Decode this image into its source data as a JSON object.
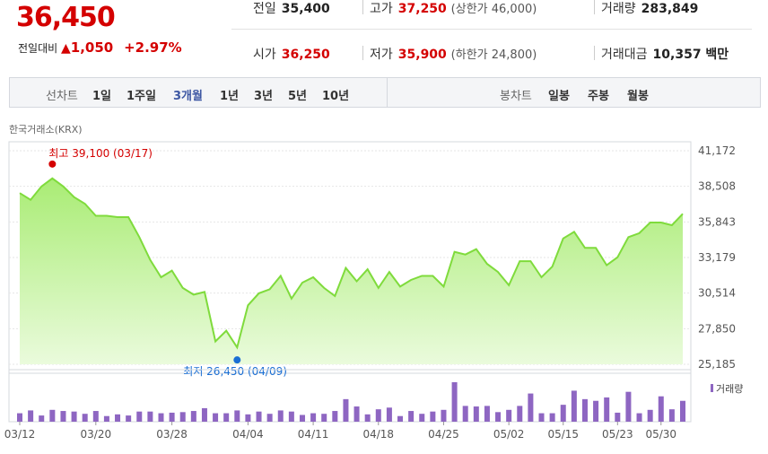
{
  "quote": {
    "price": "36,450",
    "change_label": "전일대비",
    "change_arrow": "▲",
    "change": "1,050",
    "percent": "+2.97%"
  },
  "stats": {
    "prev_label": "전일",
    "prev": "35,400",
    "open_label": "시가",
    "open": "36,250",
    "high_label": "고가",
    "high": "37,250",
    "upper_limit": "(상한가 46,000)",
    "low_label": "저가",
    "low": "35,900",
    "lower_limit": "(하한가 24,800)",
    "volume_label": "거래량",
    "volume": "283,849",
    "amount_label": "거래대금",
    "amount": "10,357 백만"
  },
  "toolbar": {
    "period_label": "선차트",
    "periods": [
      "1일",
      "1주일",
      "3개월",
      "1년",
      "3년",
      "5년",
      "10년"
    ],
    "active_period": "3개월",
    "candle_label": "봉차트",
    "candles": [
      "일봉",
      "주봉",
      "월봉"
    ]
  },
  "source": "한국거래소(KRX)",
  "colors": {
    "up": "#d40000",
    "accent": "#3d57a3",
    "line": "#7fdb3c",
    "area": "#c9f2a8",
    "volume": "#8e66c2",
    "low_marker": "#1a6fd4"
  },
  "chart_data": {
    "type": "area",
    "y_ticks": [
      "41,172",
      "38,508",
      "35,843",
      "33,179",
      "30,514",
      "27,850",
      "25,185"
    ],
    "ylim": [
      25185,
      41172
    ],
    "x_ticks": [
      "03/12",
      "03/20",
      "03/28",
      "04/04",
      "04/11",
      "04/18",
      "04/25",
      "05/02",
      "05/15",
      "05/23",
      "05/30"
    ],
    "price": [
      38000,
      37500,
      38500,
      39100,
      38500,
      37700,
      37200,
      36300,
      36300,
      36200,
      36200,
      34700,
      33000,
      31700,
      32200,
      30900,
      30400,
      30600,
      26900,
      27700,
      26450,
      29600,
      30500,
      30800,
      31800,
      30100,
      31300,
      31700,
      30900,
      30300,
      32400,
      31400,
      32300,
      30900,
      32100,
      31000,
      31500,
      31800,
      31800,
      31000,
      33600,
      33400,
      33800,
      32700,
      32100,
      31100,
      32900,
      32900,
      31700,
      32500,
      34600,
      35100,
      33900,
      33900,
      32600,
      33200,
      34700,
      35000,
      35800,
      35800,
      35600,
      36450
    ],
    "volume": [
      30,
      40,
      22,
      42,
      38,
      36,
      28,
      38,
      20,
      26,
      22,
      36,
      36,
      30,
      32,
      34,
      38,
      48,
      30,
      30,
      40,
      26,
      36,
      28,
      40,
      36,
      24,
      30,
      28,
      38,
      80,
      54,
      26,
      44,
      50,
      20,
      38,
      28,
      36,
      42,
      140,
      56,
      54,
      56,
      34,
      42,
      56,
      100,
      30,
      30,
      60,
      110,
      80,
      74,
      86,
      32,
      106,
      30,
      42,
      90,
      44,
      74
    ]
  },
  "annotations": {
    "high": "최고 39,100 (03/17)",
    "low": "최저 26,450 (04/09)"
  },
  "legend": {
    "volume": "거래량"
  }
}
